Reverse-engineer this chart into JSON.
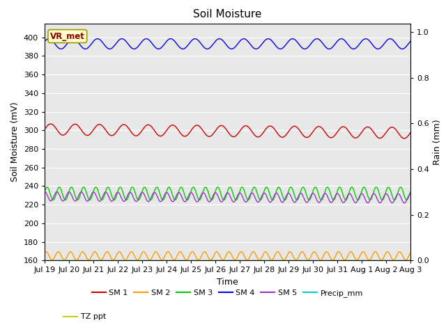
{
  "title": "Soil Moisture",
  "ylabel_left": "Soil Moisture (mV)",
  "ylabel_right": "Rain (mm)",
  "xlabel": "Time",
  "ylim_left": [
    160,
    415
  ],
  "ylim_right": [
    0.0,
    1.0375
  ],
  "num_points": 500,
  "series": {
    "SM1": {
      "color": "#cc0000",
      "mean": 301,
      "amp": 6,
      "freq": 1.0,
      "phase": 0.0,
      "trend": -0.25
    },
    "SM2": {
      "color": "#ff9900",
      "mean": 165,
      "amp": 4.5,
      "freq": 2.0,
      "phase": 0.8,
      "trend": 0.0
    },
    "SM3": {
      "color": "#00cc00",
      "mean": 232,
      "amp": 7,
      "freq": 2.0,
      "phase": 0.3,
      "trend": 0.0
    },
    "SM4": {
      "color": "#0000ee",
      "mean": 393,
      "amp": 5.5,
      "freq": 1.0,
      "phase": 0.5,
      "trend": 0.0
    },
    "SM5": {
      "color": "#9933cc",
      "mean": 229,
      "amp": 5,
      "freq": 2.0,
      "phase": 1.5,
      "trend": -0.15
    },
    "Precip_mm": {
      "color": "#00cccc",
      "mean": 160.2,
      "amp": 0.0,
      "freq": 0.0,
      "phase": 0.0,
      "trend": 0.0
    },
    "TZ_ppt": {
      "color": "#cccc00",
      "mean": 160.0,
      "amp": 0.0,
      "freq": 0.0,
      "phase": 0.0,
      "trend": 0.0
    }
  },
  "vr_met_label": "VR_met",
  "background_color": "#e8e8e8",
  "figure_background": "#ffffff",
  "legend_entries": [
    "SM 1",
    "SM 2",
    "SM 3",
    "SM 4",
    "SM 5",
    "Precip_mm",
    "TZ ppt"
  ],
  "legend_colors": [
    "#cc0000",
    "#ff9900",
    "#00cc00",
    "#0000ee",
    "#9933cc",
    "#00cccc",
    "#cccc00"
  ],
  "xtick_labels": [
    "Jul 19",
    "Jul 20",
    "Jul 21",
    "Jul 22",
    "Jul 23",
    "Jul 24",
    "Jul 25",
    "Jul 26",
    "Jul 27",
    "Jul 28",
    "Jul 29",
    "Jul 30",
    "Jul 31",
    "Aug 1",
    "Aug 2",
    "Aug 3"
  ],
  "right_yticks": [
    0.0,
    0.2,
    0.4,
    0.6,
    0.8,
    1.0
  ],
  "left_yticks": [
    160,
    180,
    200,
    220,
    240,
    260,
    280,
    300,
    320,
    340,
    360,
    380,
    400
  ]
}
